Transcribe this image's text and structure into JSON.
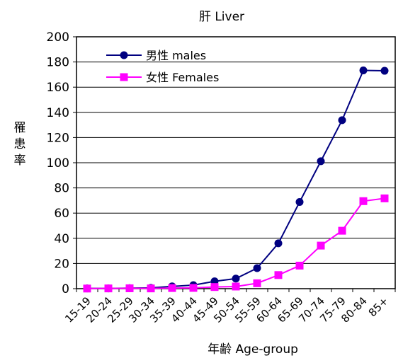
{
  "chart_data": {
    "type": "line",
    "title": "肝 Liver",
    "xlabel": "年齢 Age-group",
    "ylabel": "罹患率",
    "ylim": [
      0,
      200
    ],
    "yticks": [
      0,
      20,
      40,
      60,
      80,
      100,
      120,
      140,
      160,
      180,
      200
    ],
    "grid": "horizontal",
    "legend_position": "top-left",
    "categories": [
      "15-19",
      "20-24",
      "25-29",
      "30-34",
      "35-39",
      "40-44",
      "45-49",
      "50-54",
      "55-59",
      "60-64",
      "65-69",
      "70-74",
      "75-79",
      "80-84",
      "85+"
    ],
    "series": [
      {
        "name": "男性 males",
        "color": "#000080",
        "marker": "circle",
        "values": [
          0.2,
          0.2,
          0.4,
          0.6,
          1.8,
          2.8,
          5.8,
          8.0,
          16.3,
          36.0,
          68.8,
          101.2,
          133.8,
          173.3,
          173.0
        ]
      },
      {
        "name": "女性 Females",
        "color": "#ff00ff",
        "marker": "square",
        "values": [
          0.1,
          0.2,
          0.3,
          0.2,
          0.5,
          0.6,
          1.3,
          1.7,
          4.3,
          10.8,
          18.3,
          34.2,
          46.0,
          69.5,
          71.7
        ]
      }
    ]
  }
}
